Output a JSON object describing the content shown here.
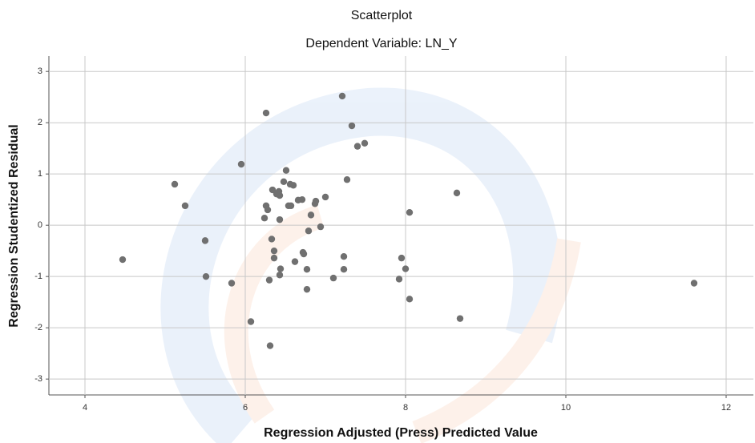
{
  "chart_data": {
    "type": "scatter",
    "title": "Scatterplot",
    "subtitle": "Dependent Variable: LN_Y",
    "x_label": "Regression Adjusted (Press) Predicted Value",
    "y_label": "Regression Studentized Residual",
    "x": [
      4.47,
      5.12,
      5.25,
      5.5,
      5.51,
      5.83,
      5.95,
      6.07,
      6.26,
      6.26,
      6.28,
      6.24,
      6.3,
      6.31,
      6.33,
      6.34,
      6.36,
      6.36,
      6.39,
      6.42,
      6.43,
      6.43,
      6.44,
      6.43,
      6.48,
      6.51,
      6.54,
      6.57,
      6.56,
      6.6,
      6.62,
      6.66,
      6.71,
      6.72,
      6.73,
      6.77,
      6.77,
      6.79,
      6.82,
      6.88,
      6.87,
      6.94,
      7.0,
      7.1,
      7.21,
      7.23,
      7.23,
      7.27,
      7.33,
      7.4,
      7.49,
      7.92,
      7.95,
      8.0,
      8.05,
      8.05,
      8.64,
      8.68,
      11.6
    ],
    "values": [
      -0.67,
      0.8,
      0.38,
      -0.3,
      -1.0,
      -1.13,
      1.19,
      -1.88,
      2.19,
      0.38,
      0.3,
      0.14,
      -1.07,
      -2.35,
      -0.27,
      0.69,
      -0.5,
      -0.64,
      0.61,
      0.66,
      0.58,
      0.11,
      -0.85,
      -0.97,
      0.85,
      1.07,
      0.38,
      0.38,
      0.8,
      0.78,
      -0.71,
      0.49,
      0.5,
      -0.53,
      -0.56,
      -0.86,
      -1.25,
      -0.11,
      0.2,
      0.47,
      0.42,
      -0.03,
      0.55,
      -1.03,
      2.52,
      -0.61,
      -0.86,
      0.89,
      1.94,
      1.54,
      1.6,
      -1.05,
      -0.64,
      -0.85,
      0.25,
      -1.44,
      0.63,
      -1.82,
      -1.13
    ],
    "color": "#707070",
    "xlim": [
      3.55,
      12.34
    ],
    "xticks": [
      4,
      6,
      8,
      10,
      12
    ],
    "ylim": [
      -3.31,
      3.3
    ],
    "yticks": [
      -3,
      -2,
      -1,
      0,
      1,
      2,
      3
    ],
    "grid": true
  }
}
